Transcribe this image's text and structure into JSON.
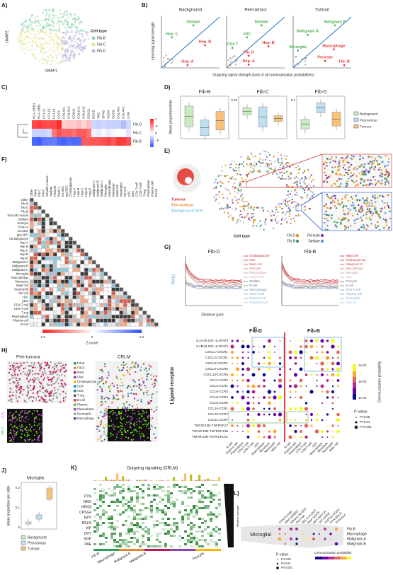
{
  "A": {
    "letter": "A)",
    "x_label": "UMAP1",
    "y_label": "UMAP2",
    "legend_title": "Cell type",
    "legend": [
      "Fib-B",
      "Fib-C",
      "Fib-D"
    ]
  },
  "B": {
    "letter": "B)",
    "y_label": "Incoming signal strength",
    "x_label": "Outgoing signal strength (sum of all communication probabilities)",
    "plots": [
      {
        "title": "Background",
        "labels": [
          "Stellate",
          "Hep. C",
          "Hep. B",
          "Hep. A"
        ]
      },
      {
        "title": "Peri-tumour",
        "labels": [
          "Stellate",
          "cDC",
          "CD4 T",
          "Fib. D",
          "Hep. B",
          "Hep. A"
        ]
      },
      {
        "title": "Tumour",
        "labels": [
          "Malignant B",
          "Malignant A",
          "Microglia",
          "Macrophage",
          "Pericyte",
          "Fib. B"
        ]
      }
    ]
  },
  "C": {
    "letter": "C)",
    "genes": [
      "HLA-DPB1",
      "HLA-DRB",
      "CCL21",
      "CCL19",
      "CCL14",
      "CD74",
      "COL4A1",
      "COL5A2",
      "CDH11",
      "COL1A1",
      "COL1A2",
      "DDX11",
      "DDX5",
      "TNC",
      "SPX6",
      "SOX4",
      "SOX9",
      "COL4A1",
      "COL4A2",
      "LUM"
    ],
    "rows": [
      "Fib-D",
      "Fib-C",
      "Fib-B"
    ],
    "scale": [
      "1",
      ".5",
      "0",
      "-.5"
    ]
  },
  "D": {
    "letter": "D)",
    "y_label": "Mean proportion/slide",
    "plots": [
      "Fib-B",
      "Fib-C",
      "Fib-D"
    ],
    "yticks": [
      "0.25",
      "0.7"
    ],
    "legend": [
      "Background",
      "Peri-tumour",
      "Tumour"
    ]
  },
  "E": {
    "letter": "E)",
    "regions": [
      "Tumour",
      "Peri-tumour",
      "Background liver"
    ],
    "legend_title": "Cell type",
    "legend": [
      "Fib D",
      "Fib B",
      "Pericyte",
      "Stellate"
    ]
  },
  "F": {
    "letter": "F)",
    "cells": [
      "Other",
      "Fib-B",
      "Fib-C",
      "Fib-D",
      "Smooth muscle",
      "Stellate",
      "Pericyte",
      "Endo-A",
      "cvLSEC",
      "ppLSEC",
      "Cholangiocyte",
      "Hep-A",
      "Hep-B",
      "Hep-C",
      "Hep-D",
      "Hep-E",
      "Malignant A",
      "Malignant B",
      "Malignant C",
      "Microglia",
      "Macrophage",
      "Monocyte",
      "Mast cell",
      "Neutrophil",
      "NK cell",
      "cDC",
      "pDC",
      "CD4 T-cell",
      "CD8 T-cell",
      "T-reg",
      "Plasmablast",
      "Plasma cell",
      "B-cell"
    ],
    "scale": [
      "-1.0",
      "0",
      "1.0"
    ],
    "scale_title": "Z-score"
  },
  "G": {
    "letter": "G)",
    "y_label": "Pcf (r)",
    "x_label": "Distance (µm)",
    "plots": [
      {
        "title": "Fib-D",
        "legend": [
          "Cholangiocyte",
          "cDC",
          "Mast cell",
          "Pericyte",
          "Plasmablast",
          "CD8 T-cell",
          "Stellate",
          "B-cell",
          "Macrophage",
          "CD4 T-cell",
          "Plasma cell",
          "Malignancy B"
        ]
      },
      {
        "title": "Fib-B",
        "legend": [
          "Mast cell",
          "Cholangiocyte",
          "Malignant B",
          "Macrophage",
          "Microglia",
          "cDC",
          "Pericyte",
          "B-cell",
          "CD4 T-cell",
          "Plasma cell",
          "Neutrophil",
          "Hep. B"
        ]
      }
    ]
  },
  "H": {
    "letter": "H)",
    "titles": [
      "Peri-tumour",
      "CRLM"
    ],
    "legend": [
      "Fib-B",
      "Fib-D",
      "Mast",
      "Glial",
      "Cholangiocyte",
      "CD4",
      "CD8",
      "T-reg",
      "B-cell",
      "Plasma",
      "Plasmablast",
      "Neutrophil",
      "Macrophage"
    ],
    "inset_left": [
      "Fib-D",
      "CD4"
    ],
    "inset_right": [
      "Fib-B",
      "CD4"
    ]
  },
  "I": {
    "letter": "I)",
    "y_label": "Ligand-receptor",
    "groups": [
      "Fib-D",
      "Fib-B"
    ],
    "rows": [
      "IL1A-(IL1R1+IL1RAP)",
      "IL1B-(IL1R1+IL1RAP)",
      "CXCL1-CXCR1",
      "CXCL2-CXCR1",
      "CXCL8-CXCR1",
      "CXCL6-CXCR2",
      "CXCL13-CXCR5",
      "CCL2-CCR2",
      "CCL3-CCR1",
      "CCL5-CCR3",
      "CCL5-CCR4",
      "CCL5-CCR5",
      "CCL14-CCR1",
      "CCL19-CCR7",
      "CCL21-CCR7",
      "TNFSF13B-TNFRSF17",
      "TNFSF13B-TNFRSF13B",
      "TNFSF13B-TNFRSF13C"
    ],
    "columns": [
      "B-cell",
      "Plasma cell",
      "Plasmablast",
      "CD4 T-cell",
      "CD8 T-cell",
      "cDC",
      "Macrophage",
      "Monocyte",
      "Neutrophil",
      "Mast cell"
    ],
    "scale_title": "Communication probability",
    "scale": [
      "1e-02",
      "1e-03",
      "1e-04"
    ],
    "pvalue_title": "P-value",
    "pvalue": [
      "P<0.05",
      "P<0.01",
      "P<0.001"
    ]
  },
  "J": {
    "letter": "J)",
    "title": "Microglia",
    "y_label": "Mean proportion per slide",
    "yticks": [
      "0.2",
      "0.1",
      "0"
    ],
    "legend": [
      "Background",
      "Peri-tumour",
      "Tumour"
    ]
  },
  "K": {
    "letter": "K)",
    "title": "Outgoing signaling (CRLM)",
    "rows": [
      "PTN",
      "NRG",
      "NRXN",
      "CPSG4",
      "NPY",
      "RELN",
      "VIP",
      "DHT",
      "NGF",
      "PAE"
    ],
    "columns": [
      "Fib-B",
      "Macrophage",
      "Malignant A",
      "Malignant B",
      "Pericyte"
    ],
    "side_label": "Relative strength"
  },
  "L": {
    "letter": "L)",
    "title": "Microglial",
    "columns": [
      "PTN-PLXNB",
      "NRG-ERBB3",
      "NRXN1-NLGN1",
      "DHT-AR",
      "RELN-VLDLR",
      "NGF-NGFR",
      "NPY-NPY1R",
      "VIP-VIPR2",
      "CSPG4-ITGA4",
      "PTN-SDC3",
      "PTN-ALK"
    ],
    "rows": [
      "Fib-B",
      "Macrophage",
      "Malignant-A",
      "Malignant-B"
    ],
    "pvalue_title": "P-value",
    "pvalue": [
      "P<0.05",
      "P<0.01",
      "P<0.001"
    ],
    "scale_title": "Communication probability"
  }
}
